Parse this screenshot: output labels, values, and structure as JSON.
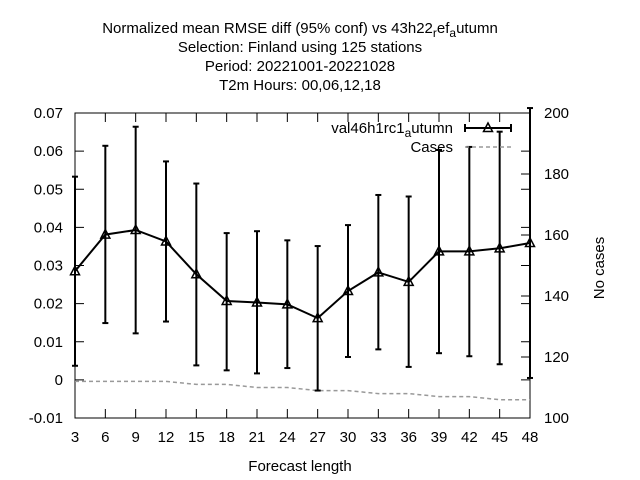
{
  "chart_data": {
    "type": "line",
    "title_lines": [
      "Normalized mean RMSE diff (95% conf) vs 43h22_ref_autumn",
      "Selection: Finland using   125 stations",
      "Period: 20221001-20221028",
      "T2m   Hours:  00,06,12,18"
    ],
    "xlabel": "Forecast length",
    "ylabel": "",
    "y2label": "No cases",
    "x": [
      3,
      6,
      9,
      12,
      15,
      18,
      21,
      24,
      27,
      30,
      33,
      36,
      39,
      42,
      45,
      48
    ],
    "xlim": [
      3,
      48
    ],
    "ylim": [
      -0.01,
      0.07
    ],
    "y_ticks": [
      -0.01,
      0,
      0.01,
      0.02,
      0.03,
      0.04,
      0.05,
      0.06,
      0.07
    ],
    "y_tick_labels": [
      "-0.01",
      "0",
      "0.01",
      "0.02",
      "0.03",
      "0.04",
      "0.05",
      "0.06",
      "0.07"
    ],
    "y2lim": [
      100,
      200
    ],
    "y2_ticks": [
      100,
      120,
      140,
      160,
      180,
      200
    ],
    "y2_tick_labels": [
      "100",
      "120",
      "140",
      "160",
      "180",
      "200"
    ],
    "x_tick_labels": [
      "3",
      "6",
      "9",
      "12",
      "15",
      "18",
      "21",
      "24",
      "27",
      "30",
      "33",
      "36",
      "39",
      "42",
      "45",
      "48"
    ],
    "series": [
      {
        "name": "val46h1rc1_autumn",
        "axis": "left",
        "color": "#000000",
        "marker": "triangle",
        "values": [
          0.0285,
          0.0381,
          0.0393,
          0.0363,
          0.0277,
          0.0207,
          0.0203,
          0.0198,
          0.0162,
          0.0233,
          0.0282,
          0.0257,
          0.0337,
          0.0337,
          0.0345,
          0.0359
        ],
        "lower": [
          0.0037,
          0.0149,
          0.0122,
          0.0153,
          0.0038,
          0.0025,
          0.0017,
          0.0031,
          -0.0028,
          0.006,
          0.008,
          0.0034,
          0.007,
          0.0062,
          0.0041,
          0.0005
        ],
        "upper": [
          0.0533,
          0.0614,
          0.0664,
          0.0573,
          0.0515,
          0.0385,
          0.039,
          0.0366,
          0.0351,
          0.0406,
          0.0485,
          0.0481,
          0.0603,
          0.0611,
          0.0651,
          0.0713
        ]
      },
      {
        "name": "Cases",
        "axis": "right",
        "color": "#999999",
        "dashed": true,
        "values": [
          112,
          112,
          112,
          112,
          111,
          111,
          110,
          110,
          109,
          109,
          108,
          108,
          107,
          107,
          106,
          106
        ]
      }
    ],
    "legend_position": "top-right",
    "grid": false
  }
}
